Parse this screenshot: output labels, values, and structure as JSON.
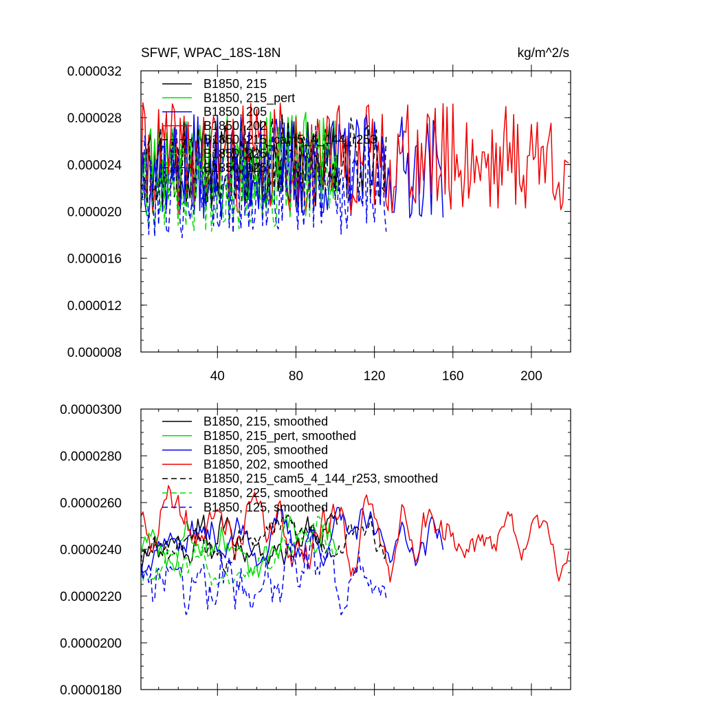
{
  "chart_data": [
    {
      "type": "line",
      "title_left": "SFWF, WPAC_18S-18N",
      "title_right": "kg/m^2/s",
      "xlabel": "",
      "ylabel": "",
      "xlim": [
        1,
        220
      ],
      "ylim": [
        8e-06,
        3.2e-05
      ],
      "x_ticks": [
        40,
        80,
        120,
        160,
        200
      ],
      "x_tick_labels": [
        "40",
        "80",
        "120",
        "160",
        "200"
      ],
      "y_ticks": [
        8e-06,
        1.2e-05,
        1.6e-05,
        2e-05,
        2.4e-05,
        2.8e-05,
        3.2e-05
      ],
      "y_tick_labels": [
        "0.000008",
        "0.000012",
        "0.000016",
        "0.000020",
        "0.000024",
        "0.000028",
        "0.000032"
      ],
      "legend_position": "top-left",
      "series": [
        {
          "name": "B1850, 215",
          "color": "#000000",
          "dash": "solid",
          "n": 101,
          "mean": 2.4e-05,
          "amp": 3.8e-06,
          "seed": 11
        },
        {
          "name": "B1850, 215_pert",
          "color": "#00dd00",
          "dash": "solid",
          "n": 101,
          "mean": 2.45e-05,
          "amp": 4e-06,
          "seed": 23
        },
        {
          "name": "B1850, 205",
          "color": "#0000ee",
          "dash": "solid",
          "n": 155,
          "mean": 2.38e-05,
          "amp": 4.5e-06,
          "seed": 37
        },
        {
          "name": "B1850, 202",
          "color": "#ee0000",
          "dash": "solid",
          "n": 219,
          "mean": 2.45e-05,
          "amp": 4.8e-06,
          "seed": 41
        },
        {
          "name": "B1850, 215_cam5_4_144_r253",
          "color": "#000000",
          "dash": "dashed",
          "n": 126,
          "mean": 2.43e-05,
          "amp": 4e-06,
          "seed": 53
        },
        {
          "name": "B1850, 225",
          "color": "#00dd00",
          "dash": "dashed",
          "n": 101,
          "mean": 2.28e-05,
          "amp": 4.5e-06,
          "seed": 67
        },
        {
          "name": "B1850, 125",
          "color": "#0000ee",
          "dash": "dashed",
          "n": 126,
          "mean": 2.25e-05,
          "amp": 4.8e-06,
          "seed": 79
        }
      ]
    },
    {
      "type": "line",
      "xlim": [
        1,
        220
      ],
      "ylim": [
        1.8e-05,
        3e-05
      ],
      "x_ticks": [
        40,
        80,
        120,
        160,
        200
      ],
      "y_ticks": [
        1.8e-05,
        2e-05,
        2.2e-05,
        2.4e-05,
        2.6e-05,
        2.8e-05,
        3e-05
      ],
      "y_tick_labels": [
        "0.0000180",
        "0.0000200",
        "0.0000220",
        "0.0000240",
        "0.0000260",
        "0.0000280",
        "0.0000300"
      ],
      "legend_position": "top-left",
      "series": [
        {
          "name": "B1850, 215, smoothed",
          "color": "#000000",
          "dash": "solid",
          "n": 101,
          "mean": 2.45e-05,
          "amp": 1.6e-06,
          "seed": 11
        },
        {
          "name": "B1850, 215_pert, smoothed",
          "color": "#00dd00",
          "dash": "solid",
          "n": 101,
          "mean": 2.43e-05,
          "amp": 1.5e-06,
          "seed": 23
        },
        {
          "name": "B1850, 205, smoothed",
          "color": "#0000ee",
          "dash": "solid",
          "n": 155,
          "mean": 2.45e-05,
          "amp": 1.5e-06,
          "seed": 37
        },
        {
          "name": "B1850, 202, smoothed",
          "color": "#ee0000",
          "dash": "solid",
          "n": 219,
          "mean": 2.48e-05,
          "amp": 2.2e-06,
          "seed": 41
        },
        {
          "name": "B1850, 215_cam5_4_144_r253, smoothed",
          "color": "#000000",
          "dash": "dashed",
          "n": 126,
          "mean": 2.47e-05,
          "amp": 1.7e-06,
          "seed": 53
        },
        {
          "name": "B1850, 225, smoothed",
          "color": "#00dd00",
          "dash": "dashed",
          "n": 101,
          "mean": 2.38e-05,
          "amp": 1.6e-06,
          "seed": 67
        },
        {
          "name": "B1850, 125, smoothed",
          "color": "#0000ee",
          "dash": "dashed",
          "n": 126,
          "mean": 2.32e-05,
          "amp": 2e-06,
          "seed": 79
        }
      ]
    }
  ]
}
